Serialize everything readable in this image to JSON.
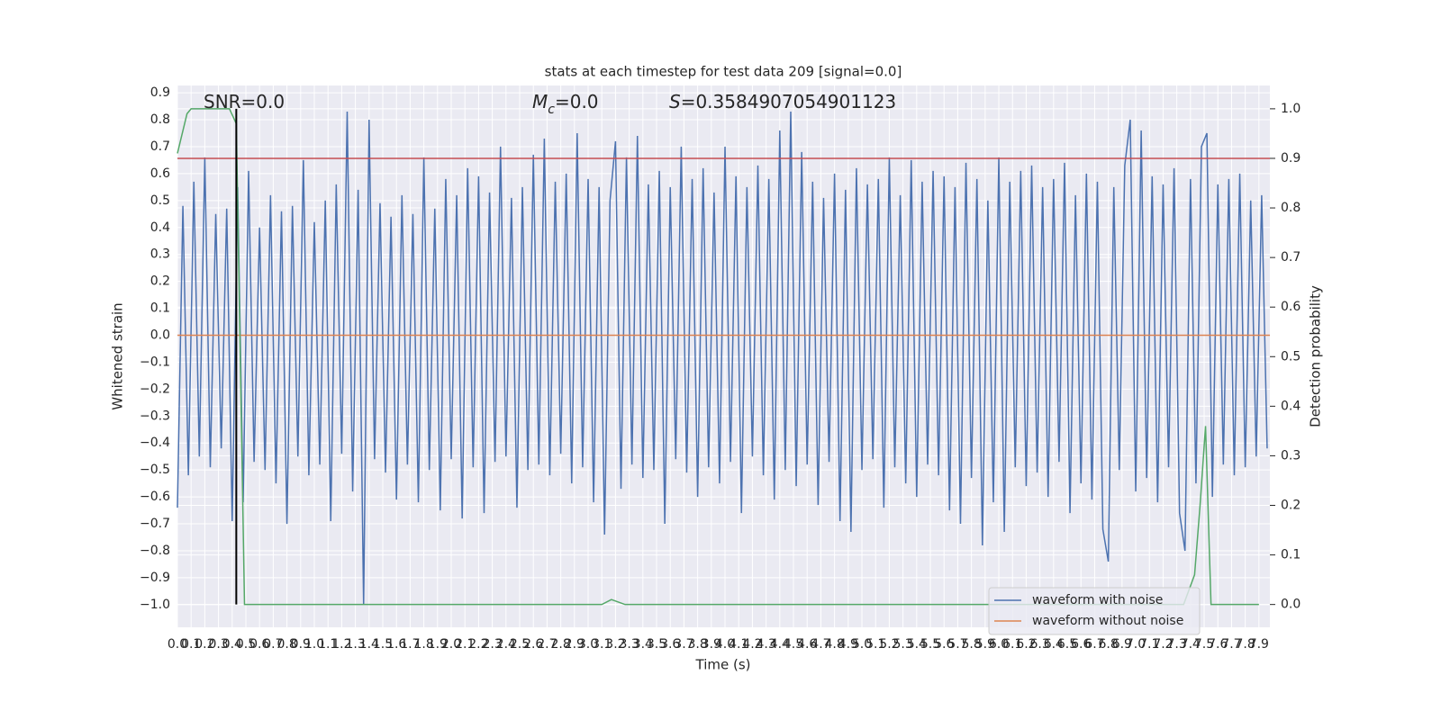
{
  "chart_data": {
    "type": "line",
    "title": "stats at each timestep for test data 209 [signal=0.0]",
    "xlabel": "Time (s)",
    "ylabel": "Whitened strain",
    "y2label": "Detection probability",
    "xlim": [
      0,
      7.98
    ],
    "ylim": [
      -1.084,
      0.927
    ],
    "y2lim": [
      -0.046,
      1.047
    ],
    "grid": true,
    "legend": "lower right",
    "xticks": [
      {
        "value": 0,
        "label": "0.0"
      },
      0.1,
      0.2,
      0.3,
      0.4,
      0.5,
      0.6,
      0.7,
      0.8,
      0.9,
      {
        "value": 1,
        "label": "1.0"
      },
      1.1,
      1.2,
      1.3,
      1.4,
      1.5,
      1.6,
      1.7,
      1.8,
      1.9,
      {
        "value": 2,
        "label": "2.0"
      },
      2.1,
      2.2,
      2.3,
      2.4,
      2.5,
      2.6,
      2.7,
      2.8,
      2.9,
      {
        "value": 3,
        "label": "3.0"
      },
      3.1,
      3.2,
      3.3,
      3.4,
      3.5,
      3.6,
      3.7,
      3.8,
      3.9,
      {
        "value": 4,
        "label": "4.0"
      },
      4.1,
      4.2,
      4.3,
      4.4,
      4.5,
      4.6,
      4.7,
      4.8,
      4.9,
      {
        "value": 5,
        "label": "5.0"
      },
      5.1,
      5.2,
      5.3,
      5.4,
      5.5,
      5.6,
      5.7,
      5.8,
      5.9,
      {
        "value": 6,
        "label": "6.0"
      },
      6.1,
      6.2,
      6.3,
      6.4,
      6.5,
      6.6,
      6.7,
      6.8,
      6.9,
      {
        "value": 7,
        "label": "7.0"
      },
      7.1,
      7.2,
      7.3,
      7.4,
      7.5,
      7.6,
      7.7,
      7.8,
      7.9
    ],
    "yticks": [
      {
        "value": -1,
        "label": "−1.0"
      },
      {
        "value": -0.9,
        "label": "−0.9"
      },
      {
        "value": -0.8,
        "label": "−0.8"
      },
      {
        "value": -0.7,
        "label": "−0.7"
      },
      {
        "value": -0.6,
        "label": "−0.6"
      },
      {
        "value": -0.5,
        "label": "−0.5"
      },
      {
        "value": -0.4,
        "label": "−0.4"
      },
      {
        "value": -0.3,
        "label": "−0.3"
      },
      {
        "value": -0.2,
        "label": "−0.2"
      },
      {
        "value": -0.1,
        "label": "−0.1"
      },
      {
        "value": 0,
        "label": "0.0"
      },
      0.1,
      0.2,
      0.3,
      0.4,
      0.5,
      0.6,
      0.7,
      0.8,
      0.9
    ],
    "y2ticks": [
      {
        "value": 0,
        "label": "0.0"
      },
      0.1,
      0.2,
      0.3,
      0.4,
      0.5,
      0.6,
      0.7,
      0.8,
      0.9,
      {
        "value": 1,
        "label": "1.0"
      }
    ],
    "series": [
      {
        "name": "waveform with noise",
        "color": "#4c72b0",
        "x": [
          0,
          0.04,
          0.08,
          0.12,
          0.16,
          0.2,
          0.24,
          0.28,
          0.32,
          0.36,
          0.4,
          0.44,
          0.48,
          0.52,
          0.56,
          0.6,
          0.64,
          0.68,
          0.72,
          0.76,
          0.8,
          0.84,
          0.88,
          0.92,
          0.96,
          1,
          1.04,
          1.08,
          1.12,
          1.16,
          1.2,
          1.24,
          1.28,
          1.32,
          1.36,
          1.4,
          1.44,
          1.48,
          1.52,
          1.56,
          1.6,
          1.64,
          1.68,
          1.72,
          1.76,
          1.8,
          1.84,
          1.88,
          1.92,
          1.96,
          2,
          2.04,
          2.08,
          2.12,
          2.16,
          2.2,
          2.24,
          2.28,
          2.32,
          2.36,
          2.4,
          2.44,
          2.48,
          2.52,
          2.56,
          2.6,
          2.64,
          2.68,
          2.72,
          2.76,
          2.8,
          2.84,
          2.88,
          2.92,
          2.96,
          3,
          3.04,
          3.08,
          3.12,
          3.16,
          3.2,
          3.24,
          3.28,
          3.32,
          3.36,
          3.4,
          3.44,
          3.48,
          3.52,
          3.56,
          3.6,
          3.64,
          3.68,
          3.72,
          3.76,
          3.8,
          3.84,
          3.88,
          3.92,
          3.96,
          4,
          4.04,
          4.08,
          4.12,
          4.16,
          4.2,
          4.24,
          4.28,
          4.32,
          4.36,
          4.4,
          4.44,
          4.48,
          4.52,
          4.56,
          4.6,
          4.64,
          4.68,
          4.72,
          4.76,
          4.8,
          4.84,
          4.88,
          4.92,
          4.96,
          5,
          5.04,
          5.08,
          5.12,
          5.16,
          5.2,
          5.24,
          5.28,
          5.32,
          5.36,
          5.4,
          5.44,
          5.48,
          5.52,
          5.56,
          5.6,
          5.64,
          5.68,
          5.72,
          5.76,
          5.8,
          5.84,
          5.88,
          5.92,
          5.96,
          6,
          6.04,
          6.08,
          6.12,
          6.16,
          6.2,
          6.24,
          6.28,
          6.32,
          6.36,
          6.4,
          6.44,
          6.48,
          6.52,
          6.56,
          6.6,
          6.64,
          6.68,
          6.72,
          6.76,
          6.8,
          6.84,
          6.88,
          6.92,
          6.96,
          7,
          7.04,
          7.08,
          7.12,
          7.16,
          7.2,
          7.24,
          7.28,
          7.32,
          7.36,
          7.4,
          7.44,
          7.48,
          7.52,
          7.56,
          7.6,
          7.64,
          7.68,
          7.72,
          7.76,
          7.8,
          7.84,
          7.88,
          7.92,
          7.96
        ],
        "values": [
          -0.64,
          0.48,
          -0.52,
          0.57,
          -0.45,
          0.66,
          -0.49,
          0.45,
          -0.42,
          0.47,
          -0.69,
          0.55,
          -0.62,
          0.61,
          -0.47,
          0.4,
          -0.5,
          0.52,
          -0.55,
          0.46,
          -0.7,
          0.48,
          -0.45,
          0.65,
          -0.52,
          0.42,
          -0.48,
          0.5,
          -0.69,
          0.56,
          -0.44,
          0.83,
          -0.58,
          0.54,
          -1.0,
          0.8,
          -0.46,
          0.49,
          -0.51,
          0.44,
          -0.61,
          0.52,
          -0.48,
          0.45,
          -0.62,
          0.66,
          -0.5,
          0.47,
          -0.65,
          0.58,
          -0.46,
          0.52,
          -0.68,
          0.62,
          -0.49,
          0.59,
          -0.66,
          0.53,
          -0.47,
          0.7,
          -0.45,
          0.51,
          -0.64,
          0.55,
          -0.5,
          0.67,
          -0.48,
          0.73,
          -0.52,
          0.57,
          -0.44,
          0.6,
          -0.55,
          0.75,
          -0.49,
          0.58,
          -0.62,
          0.55,
          -0.74,
          0.5,
          0.72,
          -0.57,
          0.66,
          -0.48,
          0.74,
          -0.53,
          0.56,
          -0.5,
          0.61,
          -0.7,
          0.55,
          -0.46,
          0.7,
          -0.51,
          0.58,
          -0.6,
          0.62,
          -0.49,
          0.53,
          -0.55,
          0.7,
          -0.47,
          0.59,
          -0.66,
          0.55,
          -0.45,
          0.63,
          -0.52,
          0.58,
          -0.61,
          0.76,
          -0.5,
          0.83,
          -0.56,
          0.68,
          -0.48,
          0.57,
          -0.63,
          0.51,
          -0.47,
          0.6,
          -0.69,
          0.54,
          -0.73,
          0.62,
          -0.5,
          0.56,
          -0.46,
          0.58,
          -0.64,
          0.66,
          -0.49,
          0.52,
          -0.55,
          0.65,
          -0.6,
          0.57,
          -0.48,
          0.61,
          -0.52,
          0.59,
          -0.65,
          0.55,
          -0.7,
          0.64,
          -0.53,
          0.58,
          -0.78,
          0.5,
          -0.62,
          0.66,
          -0.73,
          0.57,
          -0.49,
          0.61,
          -0.56,
          0.63,
          -0.51,
          0.55,
          -0.6,
          0.58,
          -0.47,
          0.64,
          -0.66,
          0.52,
          -0.55,
          0.6,
          -0.61,
          0.57,
          -0.72,
          -0.84,
          0.55,
          -0.5,
          0.63,
          0.8,
          -0.58,
          0.76,
          -0.53,
          0.59,
          -0.62,
          0.56,
          -0.49,
          0.62,
          -0.66,
          -0.8,
          0.58,
          -0.55,
          0.7,
          0.75,
          -0.6,
          0.56,
          -0.48,
          0.58,
          -0.52,
          0.6,
          -0.49,
          0.5,
          -0.45,
          0.52,
          -0.42
        ]
      },
      {
        "name": "waveform without noise",
        "color": "#dd8452",
        "x": [
          0,
          7.98
        ],
        "values": [
          0,
          0
        ]
      },
      {
        "color": "#55a868",
        "axis": "y2",
        "x": [
          0,
          0.07,
          0.1,
          0.2,
          0.3,
          0.38,
          0.43,
          0.49,
          1,
          2,
          3.1,
          3.17,
          3.27,
          4,
          5,
          6,
          7,
          7.35,
          7.43,
          7.47,
          7.51,
          7.55,
          7.6,
          7.9
        ],
        "values": [
          0.91,
          0.99,
          1,
          1,
          1,
          1,
          0.97,
          0,
          0,
          0,
          0,
          0.01,
          0,
          0,
          0,
          0,
          0,
          0,
          0.06,
          0.2,
          0.36,
          0,
          0,
          0
        ]
      }
    ],
    "hlines": [
      {
        "value": 0.9,
        "axis": "y2",
        "color": "#c44e52"
      }
    ],
    "vlines": [
      {
        "x": 0.43,
        "ymin": 0,
        "ymax": 1,
        "axis": "y2",
        "color": "#000000"
      }
    ],
    "annotations": [
      {
        "parts": [
          {
            "text": "SNR=0.0"
          }
        ]
      },
      {
        "parts": [
          {
            "text": "M",
            "style": "italic"
          },
          {
            "text": "c",
            "style": "sub"
          },
          {
            "text": "=0.0"
          }
        ]
      },
      {
        "parts": [
          {
            "text": "S",
            "style": "italic"
          },
          {
            "text": "=0.3584907054901123"
          }
        ]
      }
    ]
  }
}
